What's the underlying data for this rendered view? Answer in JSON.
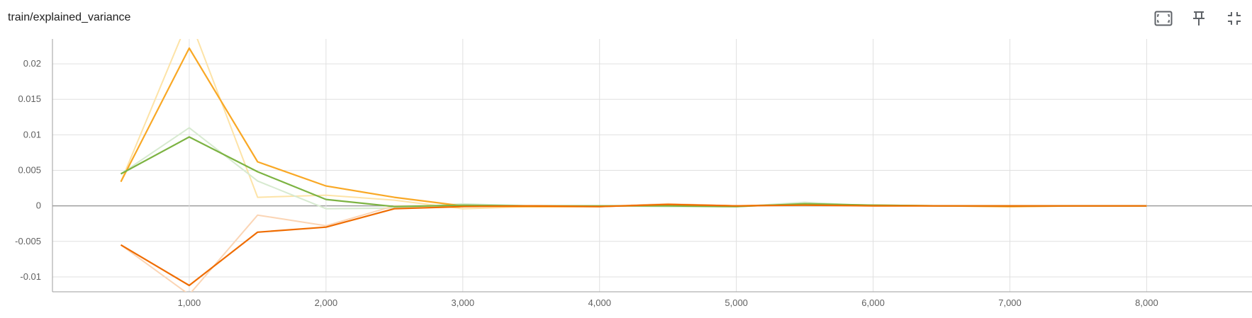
{
  "header": {
    "title": "train/explained_variance",
    "tools": [
      {
        "name": "fit-domain-icon"
      },
      {
        "name": "pin-icon"
      },
      {
        "name": "collapse-icon"
      }
    ]
  },
  "chart_data": {
    "type": "line",
    "title": "train/explained_variance",
    "xlabel": "",
    "ylabel": "",
    "xlim": [
      0,
      8770
    ],
    "ylim": [
      -0.0121,
      0.0235
    ],
    "x_ticks": [
      1000,
      2000,
      3000,
      4000,
      5000,
      6000,
      7000,
      8000
    ],
    "x_tick_labels": [
      "1,000",
      "2,000",
      "3,000",
      "4,000",
      "5,000",
      "6,000",
      "7,000",
      "8,000"
    ],
    "y_ticks": [
      -0.01,
      -0.005,
      0,
      0.005,
      0.01,
      0.015,
      0.02
    ],
    "y_tick_labels": [
      "-0.01",
      "-0.005",
      "0",
      "0.005",
      "0.01",
      "0.015",
      "0.02"
    ],
    "grid": true,
    "series": [
      {
        "color": "#f9a825",
        "raw_color": "#fde3a7",
        "x": [
          500,
          1000,
          1500,
          2000,
          2500,
          3000,
          3500,
          4000,
          4500,
          5000,
          5500,
          6000,
          6500,
          7000,
          7500,
          8000
        ],
        "values": [
          0.0034,
          0.0222,
          0.0062,
          0.0028,
          0.0012,
          0.0,
          -0.0001,
          -0.0001,
          0.0002,
          0.0,
          0.0002,
          0.0001,
          0.0,
          -0.0001,
          0.0,
          0.0
        ],
        "raw_values": [
          0.0034,
          0.0265,
          0.0012,
          0.0015,
          0.0008,
          -0.0004,
          -0.0001,
          -0.0001,
          0.0003,
          -0.0001,
          0.0003,
          0.0,
          0.0,
          -0.0001,
          0.0,
          0.0
        ]
      },
      {
        "color": "#7cb342",
        "raw_color": "#d7ead0",
        "x": [
          500,
          1000,
          1500,
          2000,
          2500,
          3000,
          3500,
          4000,
          4500,
          5000,
          5500,
          6000,
          6500,
          7000,
          7500,
          8000
        ],
        "values": [
          0.0045,
          0.0097,
          0.0048,
          0.0009,
          -0.0001,
          0.0001,
          0.0,
          0.0,
          0.0,
          -0.0001,
          0.0003,
          0.0001,
          0.0,
          0.0,
          0.0,
          0.0
        ],
        "raw_values": [
          0.0045,
          0.011,
          0.0035,
          -0.0004,
          -0.0003,
          0.0003,
          0.0,
          0.0,
          -0.0001,
          -0.0001,
          0.0005,
          0.0,
          0.0,
          0.0,
          0.0,
          0.0
        ]
      },
      {
        "color": "#ef6c00",
        "raw_color": "#fbd5b5",
        "x": [
          500,
          1000,
          1500,
          2000,
          2500,
          3000,
          3500,
          4000,
          4500,
          5000,
          5500,
          6000,
          6500,
          7000,
          7500,
          8000
        ],
        "values": [
          -0.0055,
          -0.0112,
          -0.0037,
          -0.003,
          -0.0004,
          -0.0001,
          0.0,
          -0.0001,
          0.0002,
          0.0,
          0.0001,
          0.0,
          0.0,
          0.0,
          0.0,
          0.0
        ],
        "raw_values": [
          -0.0055,
          -0.0125,
          -0.0013,
          -0.0028,
          0.0,
          0.0,
          0.0,
          -0.0001,
          0.0003,
          0.0,
          0.0001,
          0.0,
          0.0,
          0.0,
          0.0,
          0.0
        ]
      }
    ]
  }
}
